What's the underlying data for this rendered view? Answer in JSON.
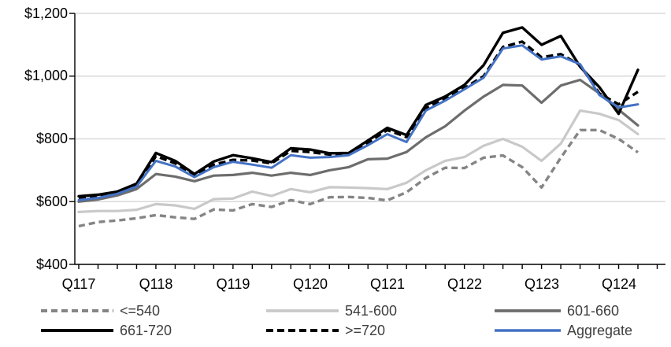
{
  "chart_data": {
    "type": "line",
    "title": "",
    "xlabel": "",
    "ylabel": "",
    "grid": true,
    "legend_position": "bottom",
    "n_points": 30,
    "x_tick_labels": [
      "Q117",
      "Q118",
      "Q119",
      "Q120",
      "Q121",
      "Q122",
      "Q123",
      "Q124"
    ],
    "x_tick_indices": [
      0,
      4,
      8,
      12,
      16,
      20,
      24,
      28
    ],
    "y_axis": {
      "min": 400,
      "max": 1200,
      "step": 200,
      "tick_labels": [
        "$400",
        "$600",
        "$800",
        "$1,000",
        "$1,200"
      ]
    },
    "colors": {
      "axis": "#000000",
      "gridline": "#d9d9d9",
      "legend_text": "#3f3f3f",
      "blue_accent": "#4472c4"
    },
    "series": [
      {
        "name": "<=540",
        "color": "#858585",
        "dash": [
          8,
          5
        ],
        "width": 3.4,
        "values": [
          522,
          535,
          540,
          547,
          557,
          550,
          545,
          575,
          572,
          592,
          583,
          605,
          592,
          614,
          615,
          612,
          604,
          630,
          675,
          708,
          707,
          740,
          747,
          710,
          645,
          740,
          828,
          828,
          800,
          757
        ]
      },
      {
        "name": "541-600",
        "color": "#c9c9c9",
        "dash": null,
        "width": 3.2,
        "values": [
          567,
          570,
          570,
          574,
          592,
          588,
          577,
          608,
          610,
          632,
          618,
          640,
          630,
          646,
          645,
          643,
          640,
          660,
          700,
          730,
          742,
          778,
          800,
          775,
          730,
          785,
          890,
          880,
          860,
          815
        ]
      },
      {
        "name": "601-660",
        "color": "#6d6d6d",
        "dash": null,
        "width": 3.2,
        "values": [
          600,
          607,
          620,
          640,
          688,
          680,
          665,
          683,
          685,
          692,
          683,
          692,
          685,
          700,
          710,
          735,
          737,
          758,
          805,
          840,
          890,
          935,
          972,
          970,
          915,
          970,
          988,
          945,
          893,
          843
        ]
      },
      {
        "name": "661-720",
        "color": "#000000",
        "dash": null,
        "width": 3.4,
        "values": [
          617,
          622,
          632,
          657,
          755,
          730,
          688,
          728,
          748,
          738,
          726,
          770,
          766,
          754,
          755,
          795,
          835,
          812,
          908,
          935,
          972,
          1035,
          1138,
          1155,
          1100,
          1128,
          1030,
          965,
          880,
          1020
        ]
      },
      {
        "name": ">=720",
        "color": "#000000",
        "dash": [
          9,
          5
        ],
        "width": 3.4,
        "values": [
          612,
          618,
          628,
          650,
          745,
          722,
          684,
          718,
          733,
          731,
          722,
          762,
          758,
          750,
          752,
          788,
          828,
          806,
          898,
          928,
          962,
          1000,
          1093,
          1110,
          1060,
          1070,
          1035,
          945,
          910,
          950
        ]
      },
      {
        "name": "Aggregate",
        "color": "#4472c4",
        "dash": null,
        "width": 3.0,
        "values": [
          605,
          612,
          625,
          648,
          730,
          712,
          678,
          710,
          727,
          718,
          708,
          748,
          740,
          742,
          748,
          780,
          815,
          790,
          890,
          922,
          958,
          995,
          1088,
          1098,
          1053,
          1063,
          1038,
          940,
          900,
          910
        ]
      }
    ]
  }
}
